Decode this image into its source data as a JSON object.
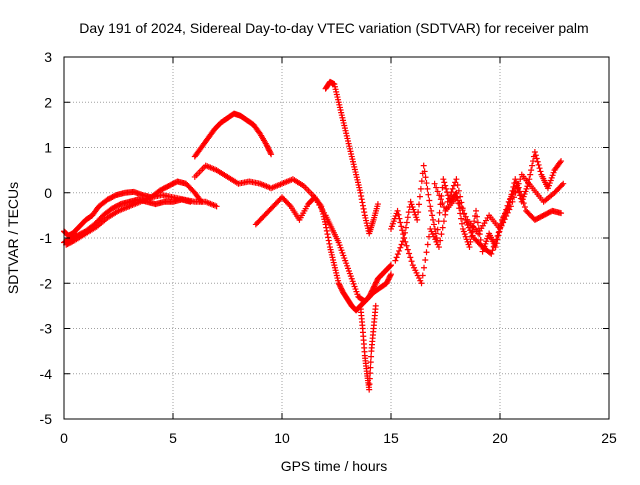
{
  "chart_data": {
    "type": "scatter",
    "title": "Day 191 of 2024, Sidereal Day-to-day VTEC variation (SDTVAR) for receiver palm",
    "xlabel": "GPS time / hours",
    "ylabel": "SDTVAR / TECUs",
    "xlim": [
      0,
      25
    ],
    "ylim": [
      -5,
      3
    ],
    "xticks": [
      0,
      5,
      10,
      15,
      20,
      25
    ],
    "yticks": [
      -5,
      -4,
      -3,
      -2,
      -1,
      0,
      1,
      2,
      3
    ],
    "grid": true,
    "marker": "+",
    "color": "#ff0000",
    "series": [
      {
        "x": [
          0.0,
          0.2,
          0.4,
          0.7,
          1.0,
          1.3,
          1.6,
          2.0,
          2.4,
          2.8,
          3.2,
          3.6,
          4.0,
          4.4,
          4.8,
          5.2,
          5.6,
          6.0,
          6.3
        ],
        "y": [
          -0.85,
          -0.95,
          -0.9,
          -0.75,
          -0.6,
          -0.5,
          -0.3,
          -0.15,
          -0.05,
          0.0,
          0.02,
          -0.05,
          -0.1,
          0.05,
          0.15,
          0.25,
          0.2,
          0.0,
          -0.2
        ]
      },
      {
        "x": [
          0.0,
          0.3,
          0.6,
          1.0,
          1.4,
          1.8,
          2.2,
          2.6,
          3.0,
          3.4,
          3.8,
          4.2,
          4.6,
          5.0,
          5.4,
          5.8
        ],
        "y": [
          -1.1,
          -1.0,
          -0.95,
          -0.85,
          -0.7,
          -0.5,
          -0.35,
          -0.25,
          -0.2,
          -0.15,
          -0.2,
          -0.25,
          -0.2,
          -0.2,
          -0.15,
          -0.2
        ]
      },
      {
        "x": [
          0.1,
          0.5,
          1.0,
          1.5,
          2.0,
          2.5,
          3.0,
          3.5,
          4.0,
          4.5,
          5.0,
          5.5,
          6.0,
          6.5,
          7.0
        ],
        "y": [
          -1.15,
          -1.05,
          -0.9,
          -0.75,
          -0.55,
          -0.4,
          -0.3,
          -0.2,
          -0.1,
          -0.05,
          -0.1,
          -0.15,
          -0.2,
          -0.2,
          -0.3
        ]
      },
      {
        "x": [
          6.0,
          6.3,
          6.6,
          6.9,
          7.2,
          7.5,
          7.8,
          8.1,
          8.4,
          8.7,
          9.0,
          9.3,
          9.5
        ],
        "y": [
          0.8,
          1.0,
          1.2,
          1.4,
          1.55,
          1.65,
          1.75,
          1.7,
          1.6,
          1.5,
          1.3,
          1.05,
          0.85
        ]
      },
      {
        "x": [
          6.0,
          6.5,
          7.0,
          7.5,
          8.0,
          8.5,
          9.0,
          9.5,
          10.0,
          10.5,
          11.0,
          11.5,
          12.0,
          12.3,
          12.6,
          12.9,
          13.2,
          13.5,
          13.8,
          14.0,
          14.2,
          14.5,
          14.8,
          15.0
        ],
        "y": [
          0.35,
          0.6,
          0.5,
          0.35,
          0.2,
          0.25,
          0.2,
          0.1,
          0.2,
          0.3,
          0.15,
          -0.1,
          -0.5,
          -0.8,
          -1.1,
          -1.5,
          -1.9,
          -2.3,
          -2.4,
          -2.3,
          -2.2,
          -2.1,
          -2.0,
          -1.8
        ]
      },
      {
        "x": [
          8.8,
          9.2,
          9.6,
          10.0,
          10.4,
          10.8,
          11.2,
          11.5,
          11.8,
          12.0,
          12.2,
          12.4,
          12.6,
          12.8,
          13.0,
          13.2,
          13.4,
          13.6,
          13.8,
          14.0,
          14.2,
          14.4,
          14.6,
          14.8,
          15.0
        ],
        "y": [
          -0.7,
          -0.5,
          -0.3,
          -0.1,
          -0.3,
          -0.6,
          -0.25,
          -0.1,
          -0.3,
          -0.7,
          -1.2,
          -1.6,
          -2.0,
          -2.2,
          -2.35,
          -2.5,
          -2.6,
          -2.5,
          -2.4,
          -2.3,
          -2.1,
          -1.9,
          -1.8,
          -1.7,
          -1.6
        ]
      },
      {
        "x": [
          12.0,
          12.2,
          12.4,
          12.6,
          12.8,
          13.0,
          13.2,
          13.4,
          13.6,
          13.8,
          14.0,
          14.2,
          14.4
        ],
        "y": [
          2.3,
          2.45,
          2.4,
          2.0,
          1.6,
          1.2,
          0.8,
          0.4,
          0.0,
          -0.5,
          -0.9,
          -0.6,
          -0.25
        ]
      },
      {
        "x": [
          13.6,
          13.7,
          13.8,
          13.9,
          14.0,
          14.1,
          14.2,
          14.3
        ],
        "y": [
          -2.5,
          -3.0,
          -3.6,
          -4.0,
          -4.35,
          -3.5,
          -3.0,
          -2.5
        ]
      },
      {
        "x": [
          15.0,
          15.3,
          15.6,
          15.9,
          16.2,
          16.5,
          16.8,
          17.1,
          17.4,
          17.7,
          18.0,
          18.3,
          18.6,
          18.9,
          19.2,
          19.5,
          19.8,
          20.1,
          20.4,
          20.7,
          21.0,
          21.3,
          21.6,
          21.9,
          22.2,
          22.5,
          22.8
        ],
        "y": [
          -0.8,
          -0.4,
          -1.0,
          -0.2,
          -0.6,
          0.6,
          -0.3,
          -1.0,
          0.3,
          -0.2,
          0.0,
          -0.8,
          -1.2,
          -0.4,
          -1.3,
          -0.9,
          -1.2,
          -0.6,
          -0.3,
          0.3,
          -0.2,
          0.2,
          0.9,
          0.4,
          0.1,
          0.5,
          0.7
        ]
      },
      {
        "x": [
          15.2,
          15.6,
          16.0,
          16.4,
          16.8,
          17.2,
          17.6,
          18.0,
          18.4,
          18.8,
          19.2,
          19.6,
          20.0,
          20.4,
          20.8,
          21.2,
          21.6,
          22.0,
          22.4,
          22.8
        ],
        "y": [
          -1.5,
          -1.0,
          -1.6,
          -2.0,
          -0.8,
          -1.2,
          -0.2,
          0.3,
          -0.6,
          -1.0,
          -1.2,
          -1.35,
          -0.8,
          -0.2,
          0.2,
          -0.4,
          -0.6,
          -0.5,
          -0.4,
          -0.45
        ]
      },
      {
        "x": [
          17.0,
          17.5,
          18.0,
          18.5,
          19.0,
          19.5,
          20.0,
          20.5,
          21.0,
          21.5,
          22.0,
          22.5,
          22.9
        ],
        "y": [
          0.2,
          -0.4,
          -0.1,
          -0.6,
          -0.9,
          -0.5,
          -0.8,
          -0.3,
          0.4,
          0.1,
          -0.2,
          0.0,
          0.2
        ]
      }
    ]
  }
}
